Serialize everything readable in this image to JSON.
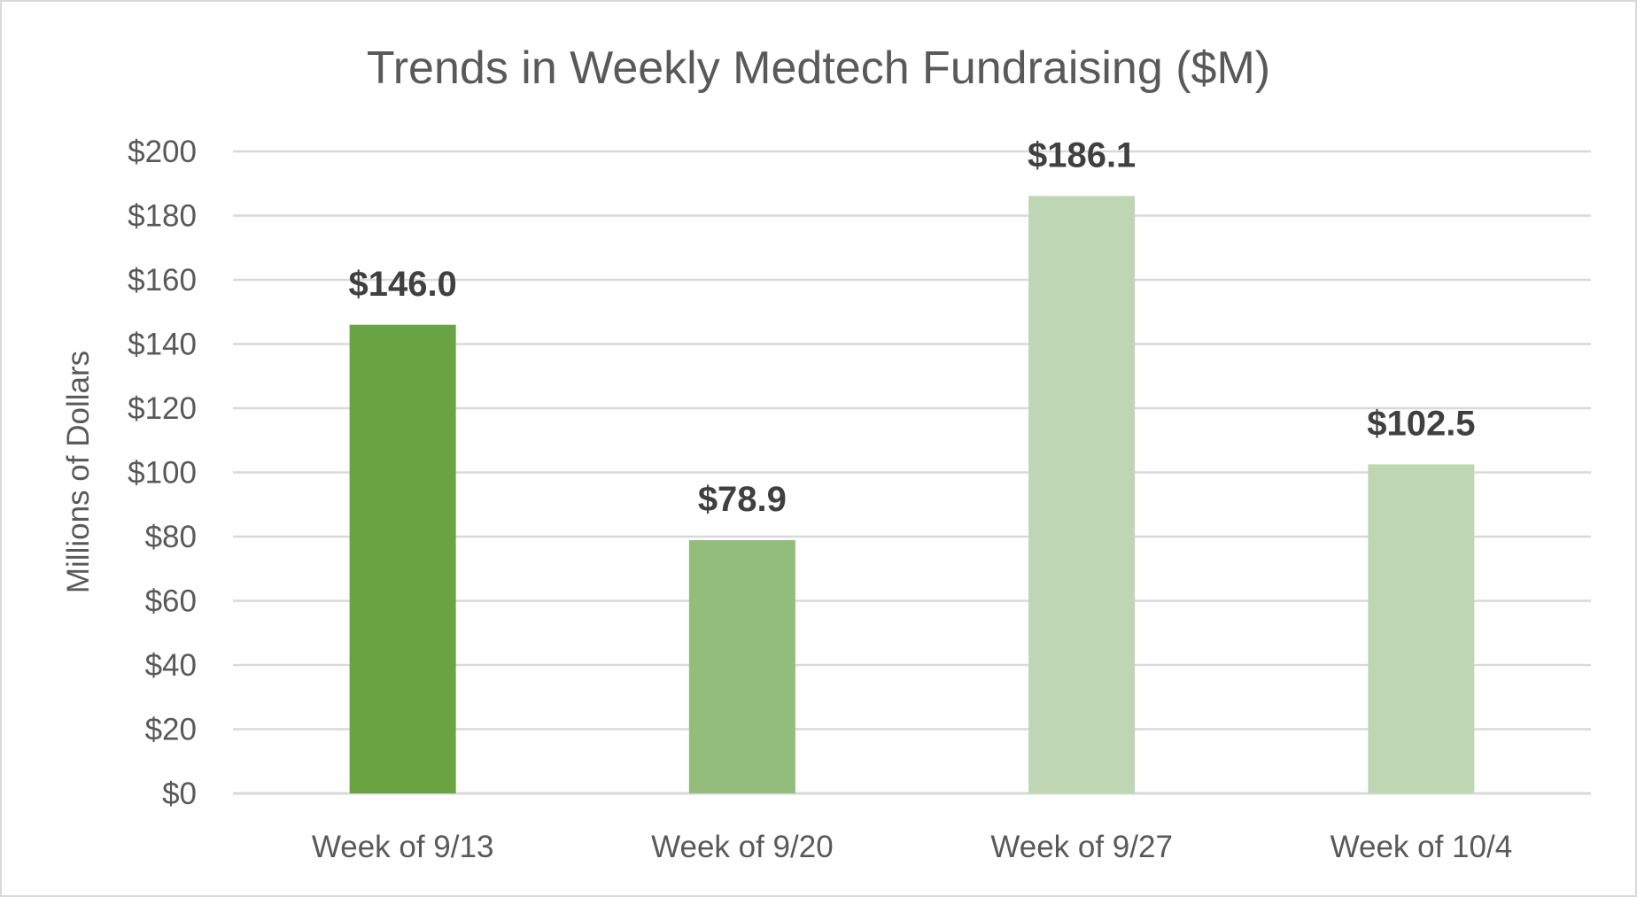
{
  "chart_data": {
    "type": "bar",
    "title": "Trends in Weekly Medtech Fundraising ($M)",
    "xlabel": "",
    "ylabel": "Millions of Dollars",
    "categories": [
      "Week of 9/13",
      "Week of 9/20",
      "Week of 9/27",
      "Week of 10/4"
    ],
    "values": [
      146.0,
      78.9,
      186.1,
      102.5
    ],
    "data_labels": [
      "$146.0",
      "$78.9",
      "$186.1",
      "$102.5"
    ],
    "colors": [
      "#6aa341",
      "#93bd7b",
      "#bed6b3",
      "#bed6b3"
    ],
    "ylim": [
      0,
      200
    ],
    "yticks": [
      0,
      20,
      40,
      60,
      80,
      100,
      120,
      140,
      160,
      180,
      200
    ],
    "ytick_labels": [
      "$0",
      "$20",
      "$40",
      "$60",
      "$80",
      "$100",
      "$120",
      "$140",
      "$160",
      "$180",
      "$200"
    ],
    "grid": true,
    "legend": "none"
  }
}
